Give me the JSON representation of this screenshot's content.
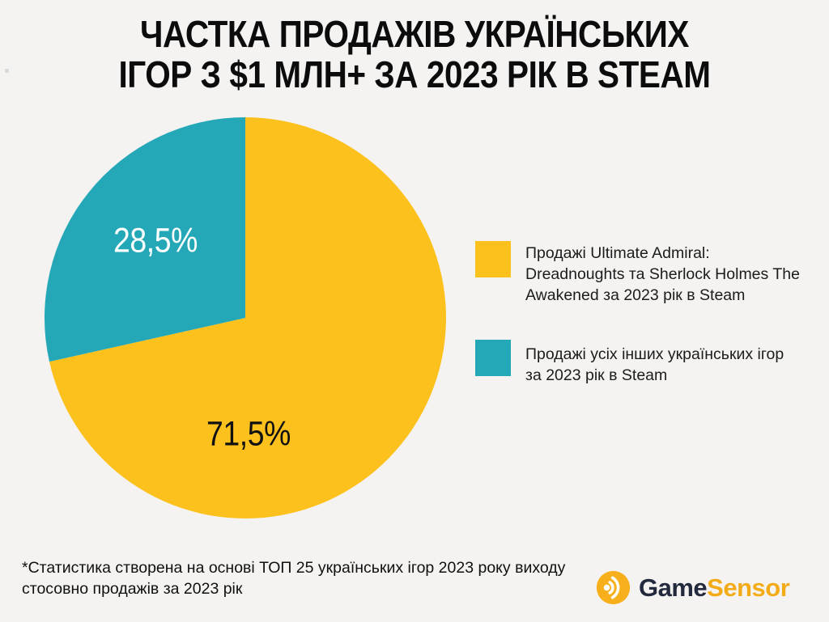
{
  "page": {
    "background": "#F4F3F1"
  },
  "title": {
    "line1": "ЧАСТКА ПРОДАЖІВ УКРАЇНСЬКИХ",
    "line2": "ІГОР З $1 МЛН+ ЗА 2023 РІК В STEAM"
  },
  "chart_data": {
    "type": "pie",
    "title": "ЧАСТКА ПРОДАЖІВ УКРАЇНСЬКИХ ІГОР З $1 МЛН+ ЗА 2023 РІК В STEAM",
    "labels": [
      "Продажі Ultimate Admiral: Dreadnoughts та Sherlock Holmes The Awakened за 2023 рік в Steam",
      "Продажі усіх інших українських ігор за 2023 рік в Steam"
    ],
    "values": [
      71.5,
      28.5
    ],
    "value_labels": [
      "71,5%",
      "28,5%"
    ],
    "value_label_colors": [
      "#111111",
      "#FFFFFF"
    ],
    "colors": [
      "#FCC11D",
      "#24A8B8"
    ],
    "start_angle_deg": 0,
    "direction": "clockwise",
    "legend_position": "right"
  },
  "legend": {
    "items": [
      {
        "lines": [
          "Продажі Ultimate Admiral:",
          "Dreadnoughts та Sherlock Holmes The",
          "Awakened за 2023 рік в Steam"
        ]
      },
      {
        "lines": [
          "Продажі усіх інших українських ігор",
          "за 2023 рік в Steam"
        ]
      }
    ]
  },
  "footnote": {
    "line1": "*Статистика створена на основі ТОП 25 українських ігор 2023 року виходу",
    "line2": "стосовно продажів за 2023 рік"
  },
  "logo": {
    "icon": "sonar-waves-icon",
    "icon_color": "#F7B01B",
    "word1": "Game",
    "word2": "Sensor",
    "word1_color": "#232A3E",
    "word2_color": "#F3AC18"
  }
}
